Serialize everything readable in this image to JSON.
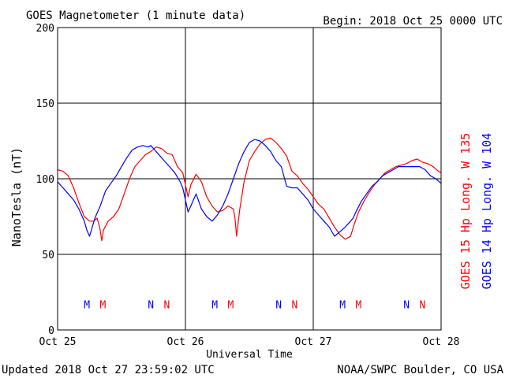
{
  "header": {
    "title": "GOES Magnetometer (1 minute data)",
    "begin": "Begin:  2018 Oct 25 0000 UTC"
  },
  "footer": {
    "updated": "Updated 2018 Oct 27 23:59:02 UTC",
    "source": "NOAA/SWPC Boulder, CO USA"
  },
  "colors": {
    "goes15": "#ff0000",
    "goes14": "#0000ff",
    "axis": "#000000"
  },
  "chart_data": {
    "type": "line",
    "title": "GOES Magnetometer (1 minute data)",
    "xlabel": "Universal Time",
    "ylabel": "NanoTesla (nT)",
    "xlim": [
      0,
      72
    ],
    "ylim": [
      0,
      200
    ],
    "yticks": [
      "0",
      "50",
      "100",
      "150",
      "200"
    ],
    "xticks": [
      {
        "hour": 0,
        "label": "Oct 25"
      },
      {
        "hour": 24,
        "label": "Oct 26"
      },
      {
        "hour": 48,
        "label": "Oct 27"
      },
      {
        "hour": 72,
        "label": "Oct 28"
      }
    ],
    "grid": true,
    "series": [
      {
        "name": "GOES 15 Hp  Long. W 135",
        "color": "#ff0000",
        "x": [
          0,
          1,
          2,
          3,
          4,
          5,
          6,
          6.8,
          7.4,
          7.9,
          8.3,
          8.6,
          9.5,
          10.5,
          11.5,
          12.5,
          13.5,
          14.5,
          15.5,
          16.5,
          17.5,
          18.5,
          19.5,
          20.5,
          21.5,
          22.5,
          23.5,
          24,
          24.5,
          25,
          26,
          27,
          28,
          29,
          30,
          31,
          32,
          33,
          33.3,
          33.6,
          34.2,
          35,
          36,
          37,
          38,
          39,
          40,
          41,
          42,
          43,
          44,
          45,
          46,
          47,
          48,
          49,
          50,
          51,
          52,
          53,
          54,
          55,
          55.7,
          56.5,
          57.5,
          58.5,
          59.5,
          60.5,
          61.5,
          62.5,
          63.5,
          64.5,
          65.5,
          66.5,
          67.5,
          68.5,
          69.5,
          70.5,
          71.5,
          72
        ],
        "y": [
          106,
          105,
          102,
          94,
          84,
          75,
          72,
          72,
          74,
          68,
          59,
          66,
          72,
          75,
          80,
          90,
          100,
          108,
          112,
          116,
          118,
          121,
          120,
          117,
          116,
          108,
          104,
          96,
          88,
          96,
          103,
          98,
          88,
          82,
          78,
          79,
          82,
          80,
          74,
          62,
          80,
          98,
          112,
          118,
          123,
          126,
          127,
          124,
          120,
          115,
          105,
          102,
          97,
          93,
          88,
          83,
          80,
          74,
          68,
          63,
          60,
          62,
          70,
          78,
          85,
          91,
          96,
          100,
          104,
          106,
          108,
          109,
          110,
          112,
          113,
          111,
          110,
          108,
          105,
          104
        ]
      },
      {
        "name": "GOES 14 Hp  Long. W 104",
        "color": "#0000ff",
        "x": [
          0,
          1,
          2,
          3,
          4,
          5,
          5.5,
          6,
          6.5,
          7,
          8,
          9,
          10,
          11,
          12,
          13,
          14,
          15,
          16,
          17,
          17.5,
          18,
          19,
          20,
          21,
          22,
          23,
          23.5,
          24,
          24.5,
          25,
          26,
          27,
          28,
          29,
          30,
          31,
          32,
          33,
          34,
          35,
          36,
          37,
          38,
          39,
          40,
          41,
          42,
          43,
          44,
          45,
          46,
          47,
          48,
          49,
          50,
          51,
          52,
          53,
          54,
          55,
          55.5,
          56,
          57,
          58,
          59,
          60,
          61,
          62,
          63,
          64,
          65,
          66,
          67,
          68,
          69,
          70,
          71,
          72
        ],
        "y": [
          98,
          94,
          90,
          86,
          80,
          72,
          66,
          62,
          68,
          74,
          82,
          92,
          97,
          102,
          108,
          114,
          119,
          121,
          122,
          121,
          122,
          120,
          116,
          112,
          108,
          104,
          98,
          94,
          86,
          78,
          82,
          90,
          80,
          75,
          72,
          76,
          82,
          90,
          100,
          110,
          118,
          124,
          126,
          125,
          122,
          118,
          112,
          108,
          95,
          94,
          94,
          90,
          86,
          80,
          76,
          72,
          68,
          62,
          65,
          68,
          72,
          74,
          78,
          85,
          90,
          95,
          98,
          102,
          104,
          106,
          108,
          108,
          108,
          108,
          108,
          106,
          102,
          100,
          97
        ]
      }
    ],
    "markers": {
      "letters_y_nT": 17,
      "items": [
        {
          "hour": 5.5,
          "text": "M",
          "color": "#0000ff"
        },
        {
          "hour": 8.5,
          "text": "M",
          "color": "#ff0000"
        },
        {
          "hour": 17.5,
          "text": "N",
          "color": "#0000ff"
        },
        {
          "hour": 20.5,
          "text": "N",
          "color": "#ff0000"
        },
        {
          "hour": 29.5,
          "text": "M",
          "color": "#0000ff"
        },
        {
          "hour": 32.5,
          "text": "M",
          "color": "#ff0000"
        },
        {
          "hour": 41.5,
          "text": "N",
          "color": "#0000ff"
        },
        {
          "hour": 44.5,
          "text": "N",
          "color": "#ff0000"
        },
        {
          "hour": 53.5,
          "text": "M",
          "color": "#0000ff"
        },
        {
          "hour": 56.5,
          "text": "M",
          "color": "#ff0000"
        },
        {
          "hour": 65.5,
          "text": "N",
          "color": "#0000ff"
        },
        {
          "hour": 68.5,
          "text": "N",
          "color": "#ff0000"
        }
      ]
    }
  }
}
